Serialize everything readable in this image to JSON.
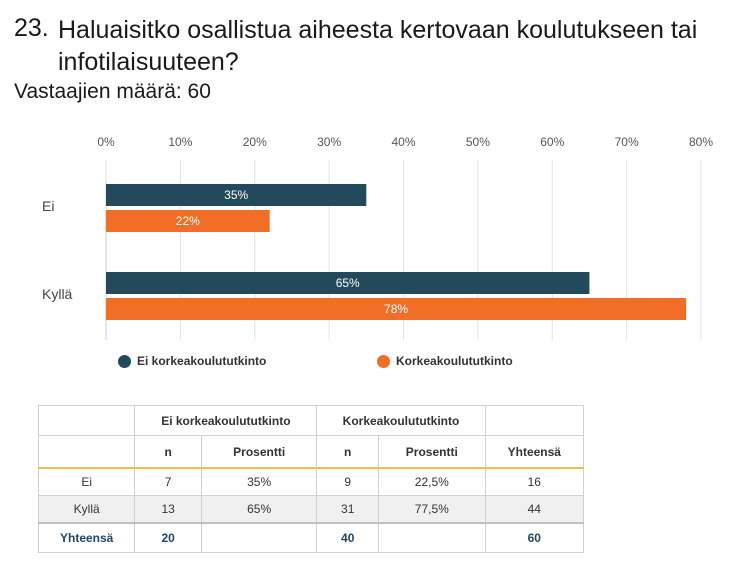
{
  "question": {
    "number": "23.",
    "title": "Haluaisitko osallistua aiheesta kertovaan koulutukseen tai infotilaisuuteen?",
    "respondents": "Vastaajien määrä: 60"
  },
  "colors": {
    "series1": "#234a5b",
    "series2": "#f26e26"
  },
  "chart_data": {
    "type": "bar",
    "orientation": "horizontal",
    "categories": [
      "Ei",
      "Kyllä"
    ],
    "series": [
      {
        "name": "Ei korkeakoulututkinto",
        "values": [
          35,
          65
        ],
        "labels": [
          "35%",
          "65%"
        ]
      },
      {
        "name": "Korkeakoulututkinto",
        "values": [
          22,
          78
        ],
        "labels": [
          "22%",
          "78%"
        ]
      }
    ],
    "xlim": [
      0,
      80
    ],
    "xticks": [
      "0%",
      "10%",
      "20%",
      "30%",
      "40%",
      "50%",
      "60%",
      "70%",
      "80%"
    ],
    "grid": true,
    "legend": "bottom"
  },
  "table": {
    "groups": [
      "Ei korkeakoulututkinto",
      "Korkeakoulututkinto"
    ],
    "subheaders": [
      "n",
      "Prosentti",
      "n",
      "Prosentti",
      "Yhteensä"
    ],
    "rows": [
      {
        "label": "Ei",
        "cells": [
          "7",
          "35%",
          "9",
          "22,5%",
          "16"
        ]
      },
      {
        "label": "Kyllä",
        "cells": [
          "13",
          "65%",
          "31",
          "77,5%",
          "44"
        ]
      }
    ],
    "total": {
      "label": "Yhteensä",
      "cells": [
        "20",
        "",
        "40",
        "",
        "60"
      ]
    }
  }
}
